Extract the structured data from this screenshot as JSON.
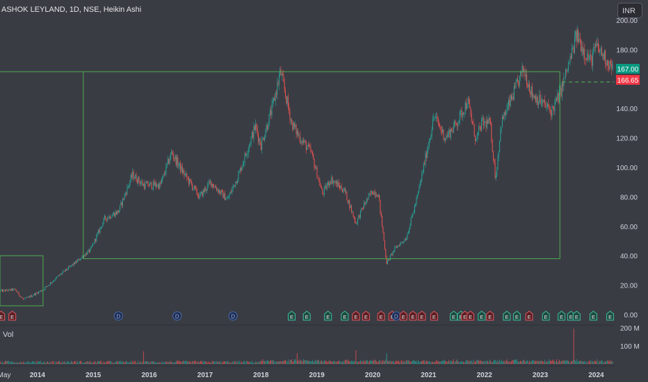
{
  "header": {
    "title": "ASHOK LEYLAND, 1D, NSE, Heikin Ashi",
    "currency": "INR"
  },
  "volume_pane": {
    "label": "Vol",
    "ticks": [
      "200 M",
      "100 M"
    ]
  },
  "price_labels": {
    "current": "167.00",
    "previous": "166.65"
  },
  "colors": {
    "up": "#26a69a",
    "down": "#ef5350",
    "box": "#4caf50",
    "bg": "#3a3c44",
    "dividend": "#1c2a4a",
    "earnings_up": "#1f4a40",
    "earnings_down": "#5a1f24"
  },
  "chart_data": {
    "type": "candlestick",
    "title": "ASHOK LEYLAND, 1D, NSE, Heikin Ashi",
    "x_ticks": [
      "May",
      "2014",
      "2015",
      "2016",
      "2017",
      "2018",
      "2019",
      "2020",
      "2021",
      "2022",
      "2023",
      "2024"
    ],
    "y_ticks": [
      "200.00",
      "180.00",
      "160.00",
      "140.00",
      "120.00",
      "100.00",
      "80.00",
      "60.00",
      "40.00",
      "20.00",
      "0.00"
    ],
    "ylim": [
      0,
      200
    ],
    "price_path": [
      [
        2013.33,
        16
      ],
      [
        2013.6,
        17
      ],
      [
        2013.75,
        10
      ],
      [
        2013.9,
        13
      ],
      [
        2014.1,
        17
      ],
      [
        2014.4,
        27
      ],
      [
        2014.7,
        36
      ],
      [
        2014.95,
        44
      ],
      [
        2015.2,
        65
      ],
      [
        2015.45,
        70
      ],
      [
        2015.7,
        95
      ],
      [
        2015.9,
        88
      ],
      [
        2016.2,
        88
      ],
      [
        2016.4,
        110
      ],
      [
        2016.6,
        97
      ],
      [
        2016.9,
        80
      ],
      [
        2017.1,
        90
      ],
      [
        2017.4,
        78
      ],
      [
        2017.6,
        95
      ],
      [
        2017.9,
        128
      ],
      [
        2018.0,
        115
      ],
      [
        2018.2,
        140
      ],
      [
        2018.35,
        165
      ],
      [
        2018.55,
        130
      ],
      [
        2018.7,
        120
      ],
      [
        2018.9,
        110
      ],
      [
        2019.1,
        82
      ],
      [
        2019.25,
        92
      ],
      [
        2019.5,
        84
      ],
      [
        2019.7,
        62
      ],
      [
        2019.85,
        75
      ],
      [
        2020.0,
        84
      ],
      [
        2020.1,
        82
      ],
      [
        2020.25,
        35
      ],
      [
        2020.4,
        45
      ],
      [
        2020.6,
        52
      ],
      [
        2020.8,
        80
      ],
      [
        2021.1,
        135
      ],
      [
        2021.3,
        120
      ],
      [
        2021.5,
        130
      ],
      [
        2021.7,
        145
      ],
      [
        2021.85,
        118
      ],
      [
        2021.95,
        130
      ],
      [
        2022.1,
        130
      ],
      [
        2022.2,
        92
      ],
      [
        2022.3,
        130
      ],
      [
        2022.5,
        148
      ],
      [
        2022.7,
        167
      ],
      [
        2022.85,
        150
      ],
      [
        2023.0,
        145
      ],
      [
        2023.2,
        138
      ],
      [
        2023.35,
        150
      ],
      [
        2023.55,
        175
      ],
      [
        2023.65,
        190
      ],
      [
        2023.8,
        178
      ],
      [
        2023.9,
        172
      ],
      [
        2024.0,
        182
      ],
      [
        2024.15,
        175
      ],
      [
        2024.3,
        167
      ]
    ],
    "annotations": [
      {
        "type": "rectangle",
        "x": [
          2013.33,
          2014.1
        ],
        "y": [
          6,
          40
        ]
      },
      {
        "type": "rectangle",
        "x": [
          2014.82,
          2023.35
        ],
        "y": [
          38,
          165
        ]
      },
      {
        "type": "hline",
        "y": 165,
        "x": [
          2013.33,
          2014.82
        ]
      },
      {
        "type": "dashed-line",
        "y": 158,
        "x": [
          2023.4,
          2024.32
        ]
      }
    ],
    "events": [
      {
        "x": 2013.35,
        "kind": "E",
        "dir": "down"
      },
      {
        "x": 2013.55,
        "kind": "E",
        "dir": "down"
      },
      {
        "x": 2015.45,
        "kind": "D"
      },
      {
        "x": 2016.5,
        "kind": "D"
      },
      {
        "x": 2017.5,
        "kind": "D"
      },
      {
        "x": 2018.55,
        "kind": "E",
        "dir": "up"
      },
      {
        "x": 2018.82,
        "kind": "E",
        "dir": "up"
      },
      {
        "x": 2019.2,
        "kind": "E",
        "dir": "up"
      },
      {
        "x": 2019.5,
        "kind": "E",
        "dir": "up"
      },
      {
        "x": 2019.7,
        "kind": "E",
        "dir": "down"
      },
      {
        "x": 2019.88,
        "kind": "E",
        "dir": "down"
      },
      {
        "x": 2020.15,
        "kind": "E",
        "dir": "down"
      },
      {
        "x": 2020.35,
        "kind": "E",
        "dir": "down"
      },
      {
        "x": 2020.42,
        "kind": "D"
      },
      {
        "x": 2020.55,
        "kind": "E",
        "dir": "down"
      },
      {
        "x": 2020.72,
        "kind": "E",
        "dir": "down"
      },
      {
        "x": 2020.88,
        "kind": "E",
        "dir": "down"
      },
      {
        "x": 2021.1,
        "kind": "E",
        "dir": "down"
      },
      {
        "x": 2021.45,
        "kind": "E",
        "dir": "up"
      },
      {
        "x": 2021.58,
        "kind": "E",
        "dir": "up"
      },
      {
        "x": 2021.65,
        "kind": "E",
        "dir": "down"
      },
      {
        "x": 2021.75,
        "kind": "E",
        "dir": "down"
      },
      {
        "x": 2021.95,
        "kind": "E",
        "dir": "up"
      },
      {
        "x": 2022.1,
        "kind": "E",
        "dir": "down"
      },
      {
        "x": 2022.4,
        "kind": "E",
        "dir": "up"
      },
      {
        "x": 2022.58,
        "kind": "E",
        "dir": "up"
      },
      {
        "x": 2022.8,
        "kind": "E",
        "dir": "down"
      },
      {
        "x": 2023.1,
        "kind": "E",
        "dir": "up"
      },
      {
        "x": 2023.38,
        "kind": "E",
        "dir": "up"
      },
      {
        "x": 2023.55,
        "kind": "E",
        "dir": "up"
      },
      {
        "x": 2023.65,
        "kind": "E",
        "dir": "up"
      },
      {
        "x": 2023.95,
        "kind": "E",
        "dir": "up"
      },
      {
        "x": 2024.25,
        "kind": "E",
        "dir": "up"
      }
    ],
    "volume_ylim": [
      0,
      200
    ],
    "volume_peaks": [
      {
        "x": 2015.9,
        "v": 70
      },
      {
        "x": 2018.65,
        "v": 60
      },
      {
        "x": 2019.7,
        "v": 75
      },
      {
        "x": 2020.25,
        "v": 60
      },
      {
        "x": 2020.5,
        "v": 205
      },
      {
        "x": 2020.55,
        "v": 120
      },
      {
        "x": 2021.0,
        "v": 50
      },
      {
        "x": 2021.6,
        "v": 65
      },
      {
        "x": 2022.2,
        "v": 50
      },
      {
        "x": 2023.6,
        "v": 195
      },
      {
        "x": 2023.85,
        "v": 60
      }
    ]
  }
}
